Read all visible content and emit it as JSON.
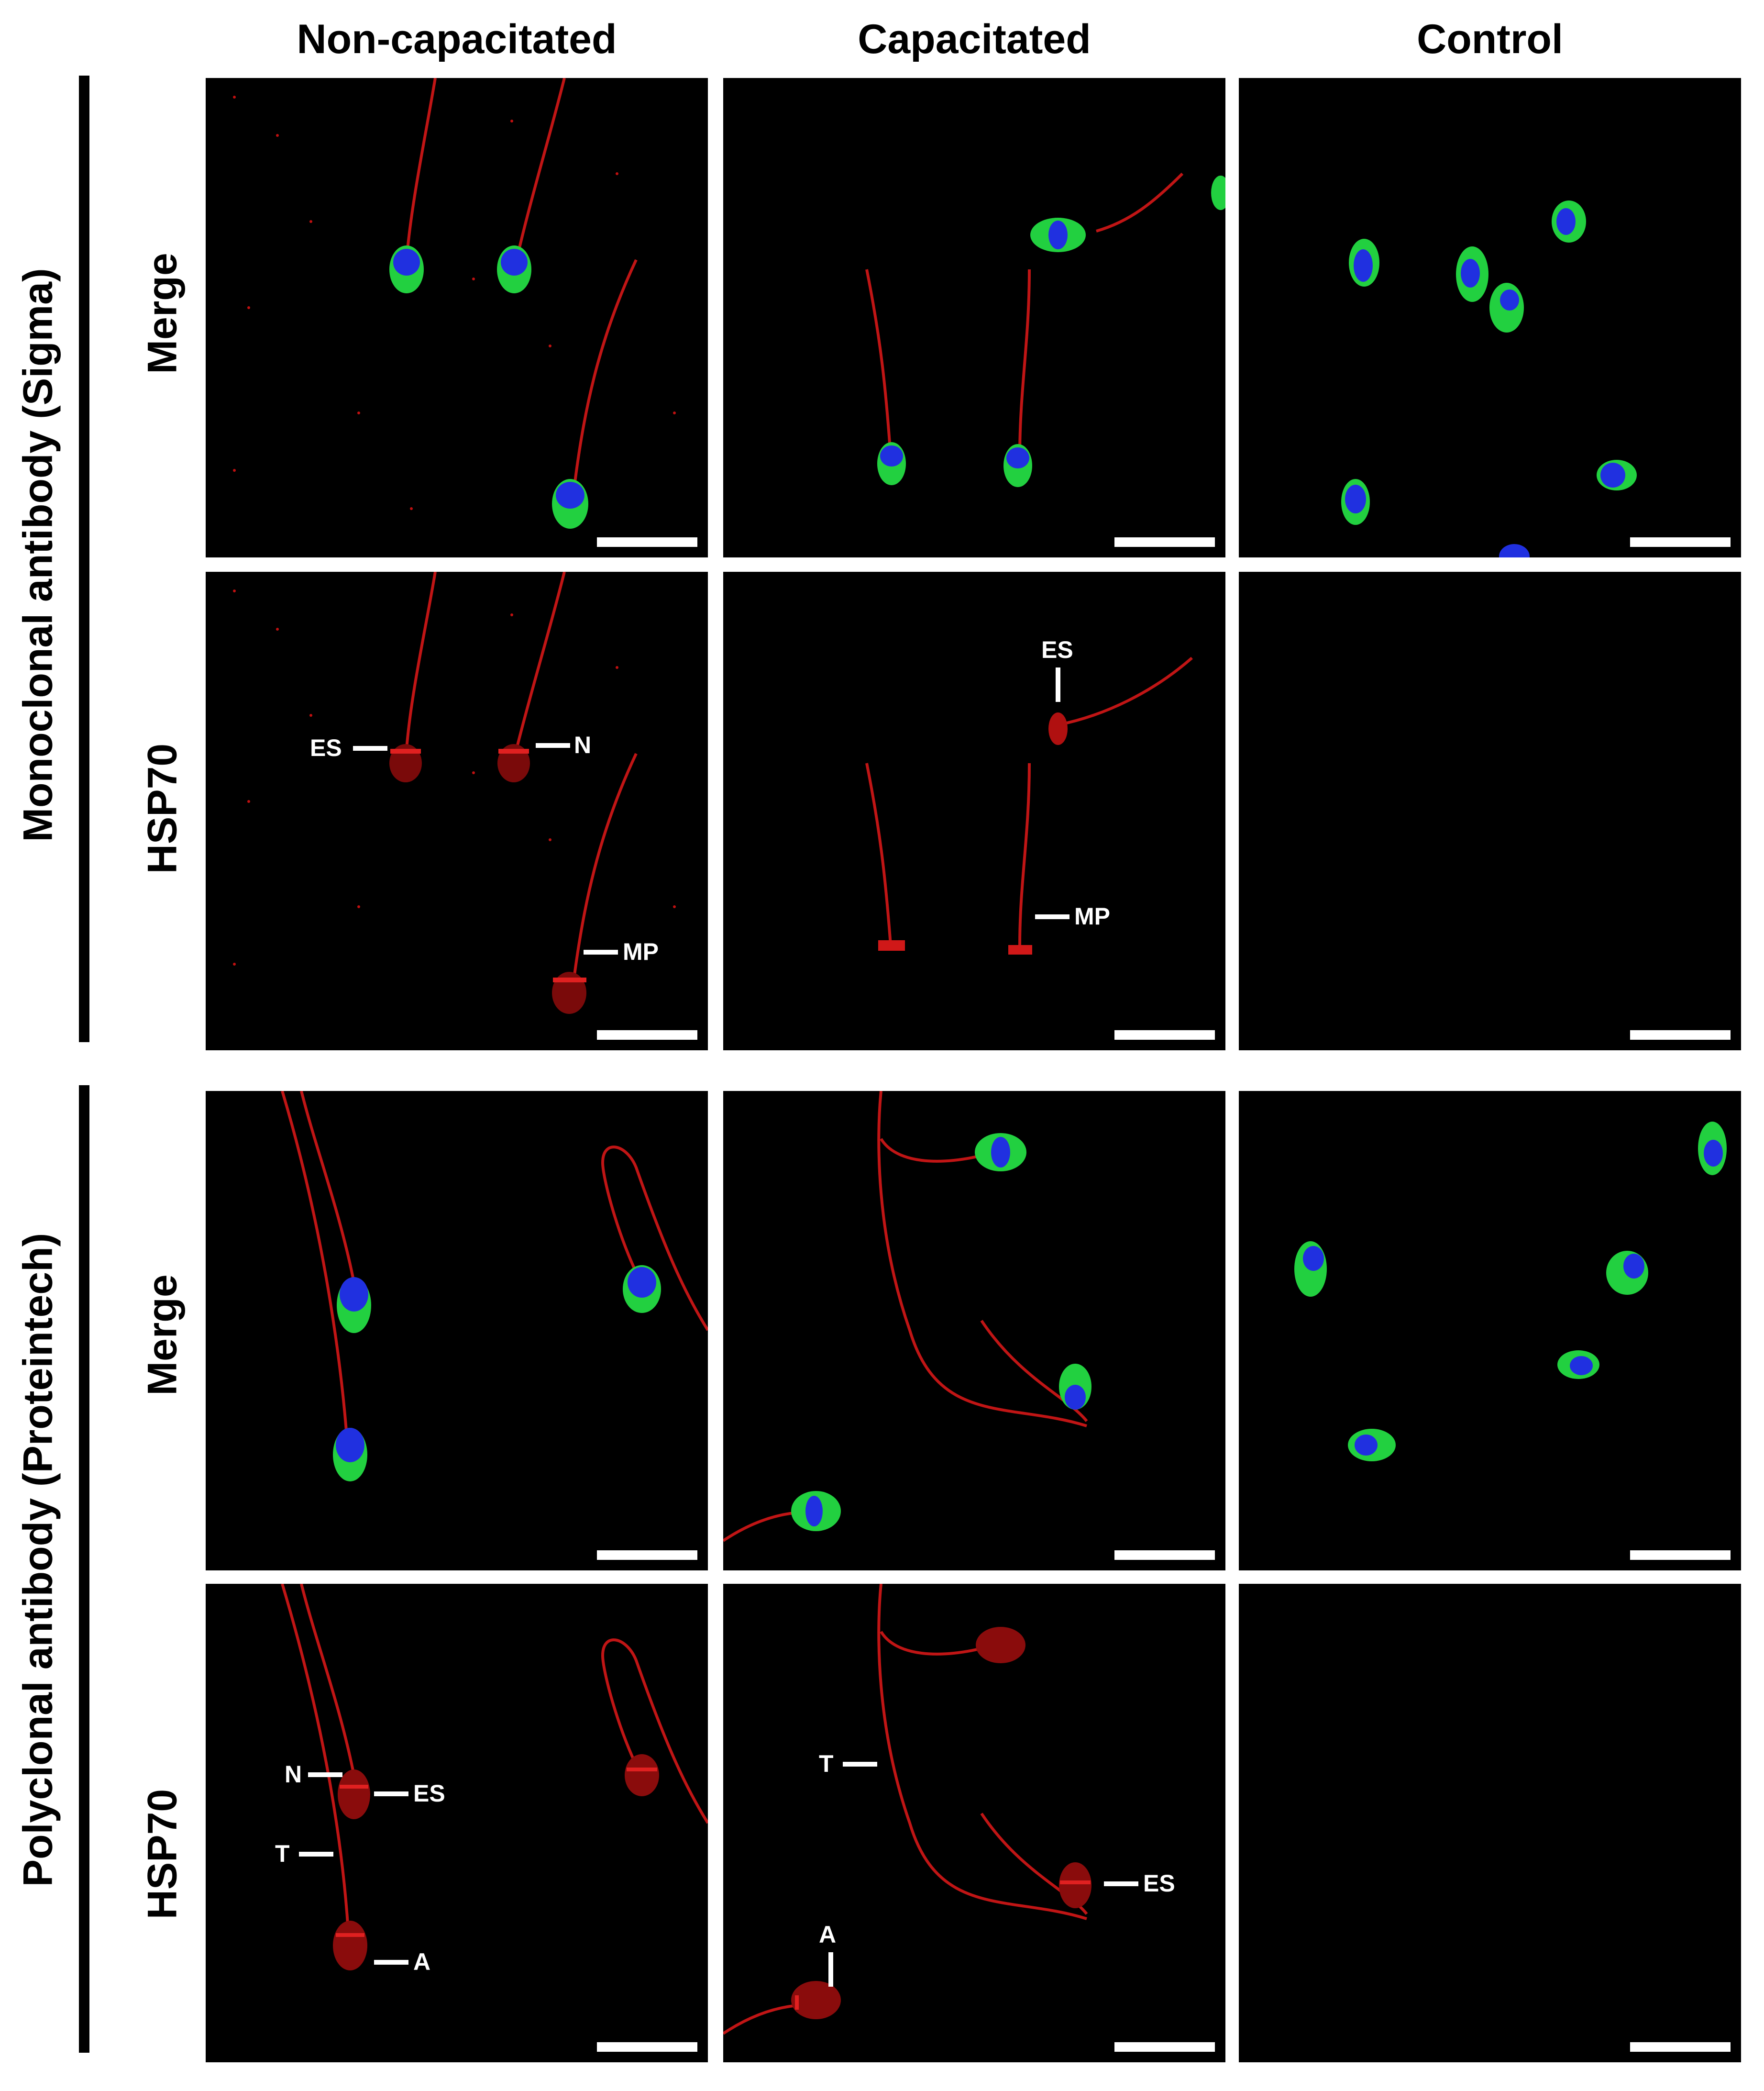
{
  "columns": [
    "Non-capacitated",
    "Capacitated",
    "Control"
  ],
  "groups": [
    {
      "label": "Monoclonal antibody (Sigma)"
    },
    {
      "label": "Polyclonal antibody (Proteintech)"
    }
  ],
  "row_labels": [
    "Merge",
    "HSP70",
    "Merge",
    "HSP70"
  ],
  "annotations": {
    "p21": {
      "es": "ES",
      "n": "N",
      "mp": "MP"
    },
    "p22": {
      "es": "ES",
      "mp": "MP"
    },
    "p41": {
      "n": "N",
      "es": "ES",
      "t": "T",
      "a": "A"
    },
    "p42": {
      "t": "T",
      "es": "ES",
      "a": "A"
    }
  },
  "colors": {
    "red_stain": "#d01010",
    "green_stain": "#22d040",
    "blue_stain": "#2030e0",
    "background": "#000000"
  }
}
